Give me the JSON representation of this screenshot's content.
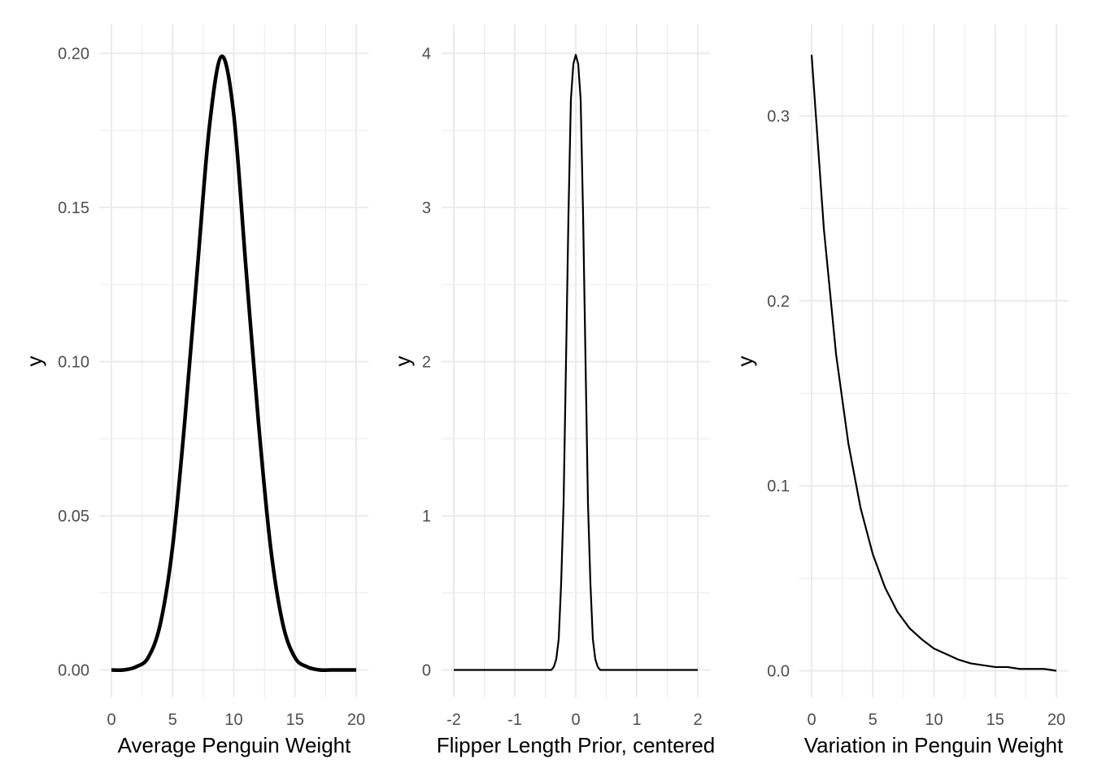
{
  "chart_data": [
    {
      "type": "line",
      "xlabel": "Average Penguin Weight",
      "ylabel": "y",
      "xlim": [
        0,
        20
      ],
      "ylim": [
        0,
        0.2
      ],
      "x_ticks": [
        "0",
        "5",
        "10",
        "15",
        "20"
      ],
      "x_tick_values": [
        0,
        5,
        10,
        15,
        20
      ],
      "y_ticks": [
        "0.00",
        "0.05",
        "0.10",
        "0.15",
        "0.20"
      ],
      "y_tick_values": [
        0,
        0.05,
        0.1,
        0.15,
        0.2
      ],
      "grid": true,
      "line_width": 4.5,
      "series": [
        {
          "x": [
            0,
            1,
            2,
            3,
            4,
            5,
            6,
            7,
            8,
            9,
            10,
            11,
            12,
            13,
            14,
            15,
            16,
            17,
            18,
            19,
            20
          ],
          "y": [
            0.0,
            0.0,
            0.001,
            0.004,
            0.015,
            0.04,
            0.081,
            0.129,
            0.176,
            0.199,
            0.18,
            0.13,
            0.081,
            0.04,
            0.015,
            0.004,
            0.001,
            0.0,
            0.0,
            0.0,
            0.0
          ]
        }
      ]
    },
    {
      "type": "line",
      "xlabel": "Flipper Length Prior, centered",
      "ylabel": "y",
      "xlim": [
        -2,
        2
      ],
      "ylim": [
        0,
        4
      ],
      "x_ticks": [
        "-2",
        "-1",
        "0",
        "1",
        "2"
      ],
      "x_tick_values": [
        -2,
        -1,
        0,
        1,
        2
      ],
      "y_ticks": [
        "0",
        "1",
        "2",
        "3",
        "4"
      ],
      "y_tick_values": [
        0,
        1,
        2,
        3,
        4
      ],
      "grid": true,
      "line_width": 2.2,
      "series": [
        {
          "x": [
            -2,
            -0.4,
            -0.36,
            -0.32,
            -0.28,
            -0.24,
            -0.2,
            -0.16,
            -0.12,
            -0.08,
            -0.04,
            0,
            0.04,
            0.08,
            0.12,
            0.16,
            0.2,
            0.24,
            0.28,
            0.32,
            0.36,
            0.4,
            2
          ],
          "y": [
            0,
            0.0,
            0.02,
            0.07,
            0.2,
            0.56,
            1.08,
            2.0,
            2.95,
            3.7,
            3.93,
            3.99,
            3.93,
            3.7,
            2.95,
            2.0,
            1.08,
            0.56,
            0.2,
            0.07,
            0.02,
            0.0,
            0
          ]
        }
      ]
    },
    {
      "type": "line",
      "xlabel": "Variation in Penguin Weight",
      "ylabel": "y",
      "xlim": [
        0,
        20
      ],
      "ylim": [
        0,
        0.333
      ],
      "x_ticks": [
        "0",
        "5",
        "10",
        "15",
        "20"
      ],
      "x_tick_values": [
        0,
        5,
        10,
        15,
        20
      ],
      "y_ticks": [
        "0.0",
        "0.1",
        "0.2",
        "0.3"
      ],
      "y_tick_values": [
        0,
        0.1,
        0.2,
        0.3
      ],
      "grid": true,
      "line_width": 2.2,
      "series": [
        {
          "x": [
            0,
            1,
            2,
            3,
            4,
            5,
            6,
            7,
            8,
            9,
            10,
            11,
            12,
            13,
            14,
            15,
            16,
            17,
            18,
            19,
            20
          ],
          "y": [
            0.333,
            0.239,
            0.171,
            0.123,
            0.088,
            0.063,
            0.045,
            0.032,
            0.023,
            0.017,
            0.012,
            0.009,
            0.006,
            0.004,
            0.003,
            0.002,
            0.002,
            0.001,
            0.001,
            0.001,
            0.0
          ]
        }
      ]
    }
  ]
}
